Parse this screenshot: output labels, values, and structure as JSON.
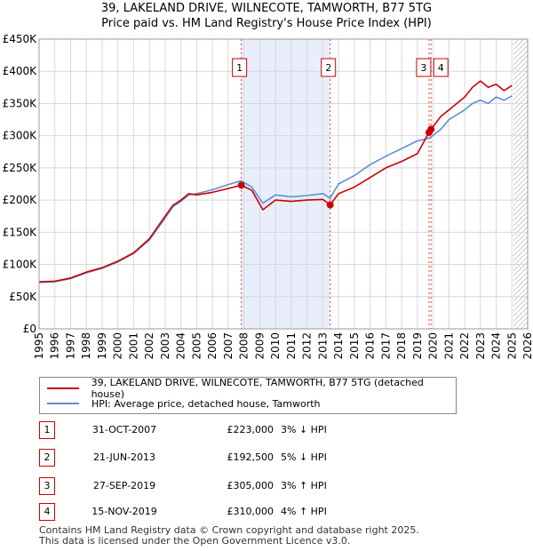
{
  "chart_data": {
    "type": "line",
    "title": "39, LAKELAND DRIVE, WILNECOTE, TAMWORTH, B77 5TG",
    "subtitle": "Price paid vs. HM Land Registry's House Price Index (HPI)",
    "xlim": [
      1995,
      2026
    ],
    "ylim": [
      0,
      450000
    ],
    "x_ticks": [
      "1995",
      "1996",
      "1997",
      "1998",
      "1999",
      "2000",
      "2001",
      "2002",
      "2003",
      "2004",
      "2005",
      "2006",
      "2007",
      "2008",
      "2009",
      "2010",
      "2011",
      "2012",
      "2013",
      "2014",
      "2015",
      "2016",
      "2017",
      "2018",
      "2019",
      "2020",
      "2021",
      "2022",
      "2023",
      "2024",
      "2025",
      "2026"
    ],
    "y_ticks": [
      {
        "v": 0,
        "label": "£0"
      },
      {
        "v": 50000,
        "label": "£50K"
      },
      {
        "v": 100000,
        "label": "£100K"
      },
      {
        "v": 150000,
        "label": "£150K"
      },
      {
        "v": 200000,
        "label": "£200K"
      },
      {
        "v": 250000,
        "label": "£250K"
      },
      {
        "v": 300000,
        "label": "£300K"
      },
      {
        "v": 350000,
        "label": "£350K"
      },
      {
        "v": 400000,
        "label": "£400K"
      },
      {
        "v": 450000,
        "label": "£450K"
      }
    ],
    "shaded_range": [
      2007.83,
      2013.47
    ],
    "future_hatch_from": 2025.1,
    "series": [
      {
        "name": "39, LAKELAND DRIVE, WILNECOTE, TAMWORTH, B77 5TG (detached house)",
        "color": "#cc0000",
        "x": [
          1995,
          1996,
          1997,
          1998,
          1999,
          2000,
          2001,
          2002,
          2003,
          2003.5,
          2004,
          2004.5,
          2005,
          2006,
          2007,
          2007.83,
          2008.5,
          2009.2,
          2010,
          2011,
          2012,
          2013,
          2013.47,
          2014,
          2015,
          2016,
          2017,
          2018,
          2019,
          2019.74,
          2019.87,
          2020.5,
          2021,
          2022,
          2022.5,
          2023,
          2023.5,
          2024,
          2024.5,
          2025
        ],
        "y": [
          73000,
          74000,
          79000,
          88000,
          95000,
          105000,
          118000,
          140000,
          175000,
          192000,
          200000,
          210000,
          208000,
          212000,
          218000,
          223000,
          215000,
          185000,
          200000,
          198000,
          200000,
          201000,
          192500,
          210000,
          220000,
          235000,
          250000,
          260000,
          272000,
          305000,
          310000,
          330000,
          340000,
          360000,
          375000,
          385000,
          375000,
          380000,
          370000,
          378000
        ]
      },
      {
        "name": "HPI: Average price, detached house, Tamworth",
        "color": "#5b8fd6",
        "x": [
          1995,
          1996,
          1997,
          1998,
          1999,
          2000,
          2001,
          2002,
          2003,
          2003.5,
          2004,
          2004.5,
          2005,
          2006,
          2007,
          2007.83,
          2008.5,
          2009.2,
          2010,
          2011,
          2012,
          2013,
          2013.47,
          2014,
          2015,
          2016,
          2017,
          2018,
          2019,
          2019.74,
          2019.87,
          2020.5,
          2021,
          2022,
          2022.5,
          2023,
          2023.5,
          2024,
          2024.5,
          2025
        ],
        "y": [
          72000,
          73000,
          78000,
          87000,
          94000,
          104000,
          117000,
          138000,
          172000,
          190000,
          198000,
          208000,
          210000,
          216000,
          224000,
          230000,
          220000,
          195000,
          208000,
          205000,
          207000,
          210000,
          203000,
          225000,
          238000,
          255000,
          268000,
          280000,
          292000,
          296000,
          298000,
          310000,
          325000,
          340000,
          350000,
          355000,
          350000,
          360000,
          355000,
          362000
        ]
      }
    ],
    "markers": [
      {
        "label": "1",
        "x": 2007.83,
        "y": 223000
      },
      {
        "label": "2",
        "x": 2013.47,
        "y": 192500
      },
      {
        "label": "3",
        "x": 2019.74,
        "y": 305000
      },
      {
        "label": "4",
        "x": 2019.87,
        "y": 310000
      }
    ]
  },
  "legend": {
    "property_label": "39, LAKELAND DRIVE, WILNECOTE, TAMWORTH, B77 5TG (detached house)",
    "hpi_label": "HPI: Average price, detached house, Tamworth"
  },
  "transactions": [
    {
      "num": "1",
      "date": "31-OCT-2007",
      "price": "£223,000",
      "hpi": "3% ↓ HPI"
    },
    {
      "num": "2",
      "date": "21-JUN-2013",
      "price": "£192,500",
      "hpi": "5% ↓ HPI"
    },
    {
      "num": "3",
      "date": "27-SEP-2019",
      "price": "£305,000",
      "hpi": "3% ↑ HPI"
    },
    {
      "num": "4",
      "date": "15-NOV-2019",
      "price": "£310,000",
      "hpi": "4% ↑ HPI"
    }
  ],
  "footer": {
    "line1": "Contains HM Land Registry data © Crown copyright and database right 2025.",
    "line2": "This data is licensed under the Open Government Licence v3.0."
  }
}
